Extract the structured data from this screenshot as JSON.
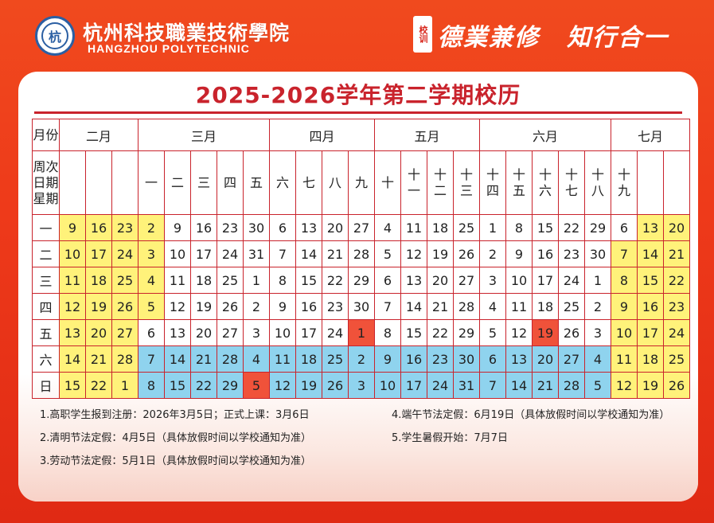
{
  "header": {
    "school_cn": "杭州科技職業技術學院",
    "school_en": "HANGZHOU POLYTECHNIC",
    "logo_glyph": "杭",
    "motto_tag": "校训",
    "motto_1": "德業兼修",
    "motto_2": "知行合一"
  },
  "title": "2025-2026学年第二学期校历",
  "table": {
    "corner_top": "月份",
    "corner_bottom": [
      "周次",
      "日期",
      "星期"
    ],
    "months": [
      "二月",
      "三月",
      "四月",
      "五月",
      "六月",
      "七月"
    ],
    "weeks": [
      "",
      "",
      "",
      "一",
      "二",
      "三",
      "四",
      "五",
      "六",
      "七",
      "八",
      "九",
      "十",
      "十一",
      "十二",
      "十三",
      "十四",
      "十五",
      "十六",
      "十七",
      "十八",
      "十九",
      "",
      ""
    ],
    "rows": [
      {
        "day": "一",
        "cells": [
          "9",
          "16",
          "23",
          "2",
          "9",
          "16",
          "23",
          "30",
          "6",
          "13",
          "20",
          "27",
          "4",
          "11",
          "18",
          "25",
          "1",
          "8",
          "15",
          "22",
          "29",
          "6",
          "13",
          "20"
        ]
      },
      {
        "day": "二",
        "cells": [
          "10",
          "17",
          "24",
          "3",
          "10",
          "17",
          "24",
          "31",
          "7",
          "14",
          "21",
          "28",
          "5",
          "12",
          "19",
          "26",
          "2",
          "9",
          "16",
          "23",
          "30",
          "7",
          "14",
          "21"
        ]
      },
      {
        "day": "三",
        "cells": [
          "11",
          "18",
          "25",
          "4",
          "11",
          "18",
          "25",
          "1",
          "8",
          "15",
          "22",
          "29",
          "6",
          "13",
          "20",
          "27",
          "3",
          "10",
          "17",
          "24",
          "1",
          "8",
          "15",
          "22"
        ]
      },
      {
        "day": "四",
        "cells": [
          "12",
          "19",
          "26",
          "5",
          "12",
          "19",
          "26",
          "2",
          "9",
          "16",
          "23",
          "30",
          "7",
          "14",
          "21",
          "28",
          "4",
          "11",
          "18",
          "25",
          "2",
          "9",
          "16",
          "23"
        ]
      },
      {
        "day": "五",
        "cells": [
          "13",
          "20",
          "27",
          "6",
          "13",
          "20",
          "27",
          "3",
          "10",
          "17",
          "24",
          "1",
          "8",
          "15",
          "22",
          "29",
          "5",
          "12",
          "19",
          "26",
          "3",
          "10",
          "17",
          "24"
        ]
      },
      {
        "day": "六",
        "cells": [
          "14",
          "21",
          "28",
          "7",
          "14",
          "21",
          "28",
          "4",
          "11",
          "18",
          "25",
          "2",
          "9",
          "16",
          "23",
          "30",
          "6",
          "13",
          "20",
          "27",
          "4",
          "11",
          "18",
          "25"
        ]
      },
      {
        "day": "日",
        "cells": [
          "15",
          "22",
          "1",
          "8",
          "15",
          "22",
          "29",
          "5",
          "12",
          "19",
          "26",
          "3",
          "10",
          "17",
          "24",
          "31",
          "7",
          "14",
          "21",
          "28",
          "5",
          "12",
          "19",
          "26"
        ]
      }
    ]
  },
  "notes": [
    "1.高职学生报到注册：2026年3月5日；正式上课：3月6日",
    "2.清明节法定假：4月5日（具体放假时间以学校通知为准）",
    "3.劳动节法定假：5月1日（具体放假时间以学校通知为准）",
    "4.端午节法定假：6月19日（具体放假时间以学校通知为准）",
    "5.学生暑假开始：7月7日"
  ],
  "colors": {
    "accent": "#c9232c",
    "holiday_fill": "#fff27a",
    "weekend_fill": "#8fd3ee",
    "legal_holiday_fill": "#f0523a"
  }
}
